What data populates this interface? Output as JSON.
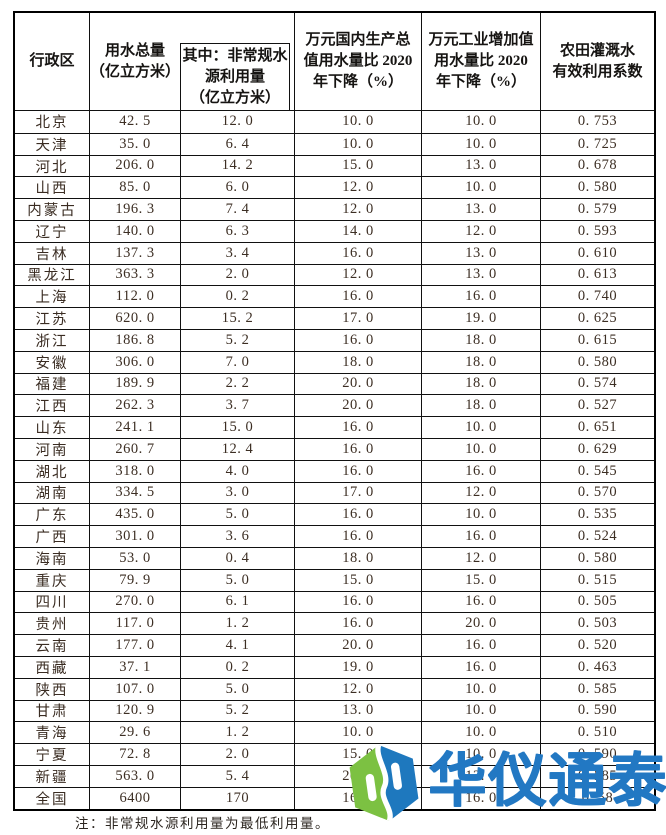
{
  "table": {
    "headers": {
      "region": "行政区",
      "total_water": "用水总量\n（亿立方米）",
      "nonconventional": "其中：非常规水\n源利用量\n（亿立方米）",
      "gdp_drop": "万元国内生产总\n值用水量比 2020\n年下降（%）",
      "industry_drop": "万元工业增加值\n用水量比 2020\n年下降（%）",
      "irrigation_coeff": "农田灌溉水\n有效利用系数"
    },
    "rows": [
      [
        "北京",
        "42. 5",
        "12. 0",
        "10. 0",
        "10. 0",
        "0. 753"
      ],
      [
        "天津",
        "35. 0",
        "6. 4",
        "10. 0",
        "10. 0",
        "0. 725"
      ],
      [
        "河北",
        "206. 0",
        "14. 2",
        "15. 0",
        "13. 0",
        "0. 678"
      ],
      [
        "山西",
        "85. 0",
        "6. 0",
        "12. 0",
        "10. 0",
        "0. 580"
      ],
      [
        "内蒙古",
        "196. 3",
        "7. 4",
        "12. 0",
        "13. 0",
        "0. 579"
      ],
      [
        "辽宁",
        "140. 0",
        "6. 3",
        "14. 0",
        "12. 0",
        "0. 593"
      ],
      [
        "吉林",
        "137. 3",
        "3. 4",
        "16. 0",
        "13. 0",
        "0. 610"
      ],
      [
        "黑龙江",
        "363. 3",
        "2. 0",
        "12. 0",
        "13. 0",
        "0. 613"
      ],
      [
        "上海",
        "112. 0",
        "0. 2",
        "16. 0",
        "16. 0",
        "0. 740"
      ],
      [
        "江苏",
        "620. 0",
        "15. 2",
        "17. 0",
        "19. 0",
        "0. 625"
      ],
      [
        "浙江",
        "186. 8",
        "5. 2",
        "16. 0",
        "18. 0",
        "0. 615"
      ],
      [
        "安徽",
        "306. 0",
        "7. 0",
        "18. 0",
        "18. 0",
        "0. 580"
      ],
      [
        "福建",
        "189. 9",
        "2. 2",
        "20. 0",
        "18. 0",
        "0. 574"
      ],
      [
        "江西",
        "262. 3",
        "3. 7",
        "20. 0",
        "18. 0",
        "0. 527"
      ],
      [
        "山东",
        "241. 1",
        "15. 0",
        "16. 0",
        "10. 0",
        "0. 651"
      ],
      [
        "河南",
        "260. 7",
        "12. 4",
        "16. 0",
        "10. 0",
        "0. 629"
      ],
      [
        "湖北",
        "318. 0",
        "4. 0",
        "16. 0",
        "16. 0",
        "0. 545"
      ],
      [
        "湖南",
        "334. 5",
        "3. 0",
        "17. 0",
        "12. 0",
        "0. 570"
      ],
      [
        "广东",
        "435. 0",
        "5. 0",
        "16. 0",
        "10. 0",
        "0. 535"
      ],
      [
        "广西",
        "301. 0",
        "3. 6",
        "16. 0",
        "16. 0",
        "0. 524"
      ],
      [
        "海南",
        "53. 0",
        "0. 4",
        "18. 0",
        "12. 0",
        "0. 580"
      ],
      [
        "重庆",
        "79. 9",
        "5. 0",
        "15. 0",
        "15. 0",
        "0. 515"
      ],
      [
        "四川",
        "270. 0",
        "6. 1",
        "16. 0",
        "16. 0",
        "0. 505"
      ],
      [
        "贵州",
        "117. 0",
        "1. 2",
        "16. 0",
        "20. 0",
        "0. 503"
      ],
      [
        "云南",
        "177. 0",
        "4. 1",
        "20. 0",
        "16. 0",
        "0. 520"
      ],
      [
        "西藏",
        "37. 1",
        "0. 2",
        "19. 0",
        "16. 0",
        "0. 463"
      ],
      [
        "陕西",
        "107. 0",
        "5. 0",
        "12. 0",
        "10. 0",
        "0. 585"
      ],
      [
        "甘肃",
        "120. 9",
        "5. 2",
        "13. 0",
        "10. 0",
        "0. 590"
      ],
      [
        "青海",
        "29. 6",
        "1. 2",
        "10. 0",
        "10. 0",
        "0. 510"
      ],
      [
        "宁夏",
        "72. 8",
        "2. 0",
        "15. 0",
        "10. 0",
        "0. 590"
      ],
      [
        "新疆",
        "563. 0",
        "5. 4",
        "20. 0",
        "12. 0",
        "0. 585"
      ],
      [
        "全国",
        "6400",
        "170",
        "16. 0",
        "16. 0",
        "0. 58"
      ]
    ]
  },
  "note": "注：非常规水源利用量为最低利用量。",
  "watermark": {
    "text": "华仪通泰",
    "logo_icon": "huayi-tongtai-hexagon-logo",
    "blue": "#2278c3",
    "green": "#7cc142"
  },
  "colors": {
    "table_border": "#000000",
    "header_text": "#161412",
    "body_text": "#3c2e23"
  }
}
